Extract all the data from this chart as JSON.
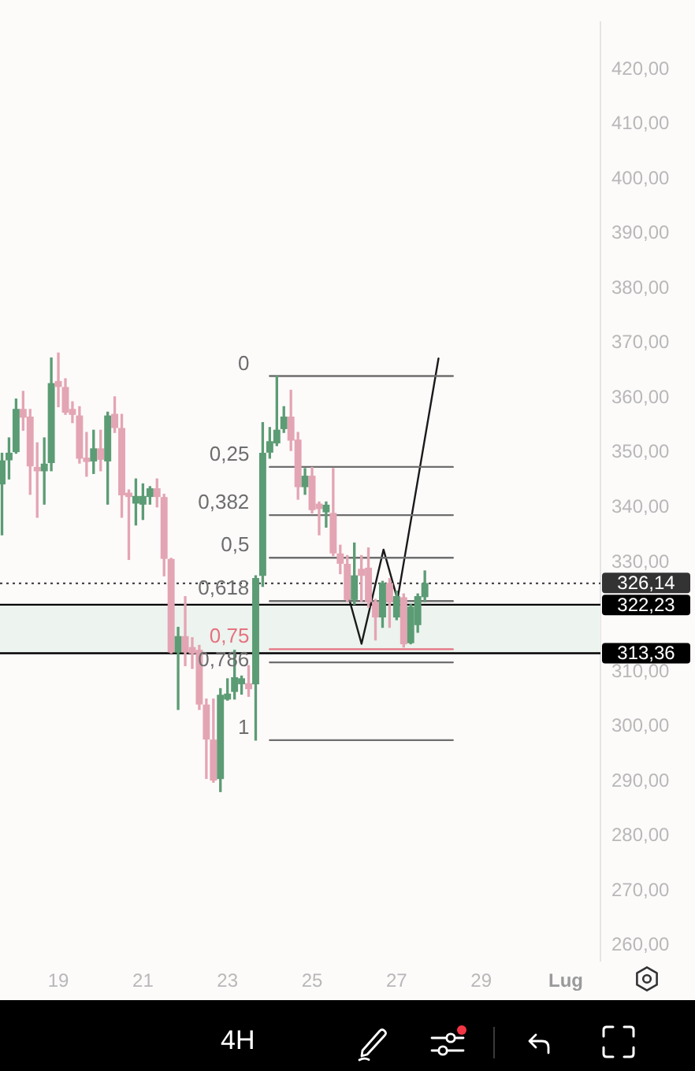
{
  "chart_data": {
    "type": "candlestick",
    "x": [
      17.667,
      17.833,
      18,
      18.167,
      18.333,
      18.5,
      18.667,
      18.833,
      19,
      19.167,
      19.333,
      19.5,
      19.667,
      19.833,
      20,
      20.167,
      20.333,
      20.5,
      20.667,
      20.833,
      21,
      21.167,
      21.333,
      21.5,
      21.667,
      21.833,
      22,
      22.167,
      22.333,
      22.5,
      22.667,
      22.833,
      23,
      23.167,
      23.333,
      23.5,
      23.667,
      23.833,
      24,
      24.167,
      24.333,
      24.5,
      24.667,
      24.833,
      25,
      25.167,
      25.333,
      25.5,
      25.667,
      25.833,
      26,
      26.167,
      26.333,
      26.5,
      26.667,
      26.833,
      27,
      27.167,
      27.333,
      27.5,
      27.667
    ],
    "ohlc": [
      [
        344.3,
        349.9,
        335.0,
        348.5
      ],
      [
        348.7,
        352.7,
        345.2,
        349.9
      ],
      [
        350.2,
        359.8,
        349.9,
        357.9
      ],
      [
        357.9,
        361.2,
        354.1,
        356.5
      ],
      [
        356.5,
        357.9,
        342.4,
        347.6
      ],
      [
        347.3,
        351.8,
        338.2,
        346.7
      ],
      [
        346.7,
        352.7,
        340.6,
        347.9
      ],
      [
        348.2,
        367.3,
        346.7,
        362.6
      ],
      [
        363.0,
        368.2,
        358.4,
        362.1
      ],
      [
        361.9,
        363.5,
        357.0,
        357.4
      ],
      [
        357.9,
        359.3,
        355.5,
        357.0
      ],
      [
        356.7,
        358.4,
        348.1,
        349.0
      ],
      [
        349.0,
        353.7,
        345.7,
        348.4
      ],
      [
        348.5,
        354.1,
        346.2,
        350.7
      ],
      [
        350.7,
        354.1,
        346.7,
        348.8
      ],
      [
        348.5,
        357.4,
        340.6,
        356.7
      ],
      [
        357.0,
        360.2,
        353.7,
        354.6
      ],
      [
        354.4,
        357.0,
        338.2,
        342.3
      ],
      [
        342.6,
        343.2,
        330.5,
        342.0
      ],
      [
        340.8,
        345.2,
        336.8,
        342.0
      ],
      [
        340.6,
        344.3,
        337.8,
        342.0
      ],
      [
        342.0,
        343.8,
        340.6,
        343.4
      ],
      [
        343.4,
        345.2,
        340.1,
        342.0
      ],
      [
        341.8,
        342.4,
        327.5,
        330.7
      ],
      [
        330.5,
        330.7,
        313.4,
        313.6
      ],
      [
        313.6,
        318.1,
        303.1,
        316.4
      ],
      [
        316.4,
        323.7,
        311.1,
        313.6
      ],
      [
        314.4,
        316.2,
        310.6,
        313.4
      ],
      [
        313.9,
        314.8,
        303.1,
        304.1
      ],
      [
        303.9,
        305.0,
        290.5,
        297.7
      ],
      [
        297.5,
        305.0,
        289.8,
        290.2
      ],
      [
        290.5,
        306.9,
        288.1,
        305.7
      ],
      [
        305.0,
        308.7,
        304.8,
        305.9
      ],
      [
        306.4,
        313.9,
        305.0,
        308.9
      ],
      [
        307.8,
        309.2,
        305.9,
        308.7
      ],
      [
        307.8,
        311.1,
        305.5,
        306.9
      ],
      [
        307.8,
        327.5,
        297.5,
        327.0
      ],
      [
        327.6,
        355.5,
        325.6,
        349.9
      ],
      [
        350.1,
        354.6,
        349.0,
        352.0
      ],
      [
        351.8,
        364.0,
        351.3,
        354.1
      ],
      [
        354.4,
        358.4,
        353.7,
        356.5
      ],
      [
        356.5,
        361.4,
        350.4,
        352.3
      ],
      [
        352.3,
        353.7,
        341.5,
        343.8
      ],
      [
        343.8,
        347.1,
        342.4,
        345.7
      ],
      [
        345.7,
        347.3,
        339.0,
        339.6
      ],
      [
        340.6,
        341.0,
        335.0,
        339.8
      ],
      [
        339.2,
        341.0,
        336.4,
        340.4
      ],
      [
        338.9,
        347.1,
        331.2,
        331.7
      ],
      [
        331.5,
        333.1,
        327.9,
        329.8
      ],
      [
        329.6,
        331.2,
        322.8,
        323.2
      ],
      [
        323.2,
        333.5,
        322.3,
        327.5
      ],
      [
        328.7,
        331.2,
        322.8,
        327.6
      ],
      [
        328.9,
        332.6,
        321.8,
        322.8
      ],
      [
        322.6,
        323.2,
        315.8,
        320.0
      ],
      [
        320.0,
        326.5,
        318.1,
        326.1
      ],
      [
        326.1,
        327.0,
        318.1,
        322.8
      ],
      [
        320.0,
        324.7,
        319.5,
        323.7
      ],
      [
        323.5,
        324.2,
        314.5,
        315.1
      ],
      [
        315.3,
        322.3,
        315.1,
        321.8
      ],
      [
        318.6,
        324.2,
        317.2,
        323.7
      ],
      [
        323.7,
        328.4,
        322.8,
        326.1
      ]
    ],
    "colors": [
      "#5b9c74",
      "#5b9c74",
      "#5b9c74",
      "#e3a5b3",
      "#e3a5b3",
      "#e3a5b3",
      "#5b9c74",
      "#5b9c74",
      "#e3a5b3",
      "#e3a5b3",
      "#e3a5b3",
      "#e3a5b3",
      "#e3a5b3",
      "#5b9c74",
      "#e3a5b3",
      "#5b9c74",
      "#e3a5b3",
      "#e3a5b3",
      "#e3a5b3",
      "#5b9c74",
      "#5b9c74",
      "#5b9c74",
      "#e3a5b3",
      "#e3a5b3",
      "#e3a5b3",
      "#5b9c74",
      "#e3a5b3",
      "#e3a5b3",
      "#e3a5b3",
      "#e3a5b3",
      "#e3a5b3",
      "#5b9c74",
      "#5b9c74",
      "#5b9c74",
      "#5b9c74",
      "#e3a5b3",
      "#5b9c74",
      "#5b9c74",
      "#5b9c74",
      "#5b9c74",
      "#5b9c74",
      "#e3a5b3",
      "#e3a5b3",
      "#5b9c74",
      "#e3a5b3",
      "#e3a5b3",
      "#5b9c74",
      "#e3a5b3",
      "#e3a5b3",
      "#e3a5b3",
      "#5b9c74",
      "#e3a5b3",
      "#e3a5b3",
      "#e3a5b3",
      "#5b9c74",
      "#e3a5b3",
      "#5b9c74",
      "#e3a5b3",
      "#5b9c74",
      "#5b9c74",
      "#5b9c74"
    ],
    "series": [
      {
        "type": "line",
        "name": "0",
        "color": "#6e6e6e",
        "x": [
          24,
          28.33
        ],
        "values": [
          364.0,
          364.0
        ]
      },
      {
        "type": "line",
        "name": "0,25",
        "color": "#6e6e6e",
        "x": [
          24,
          28.33
        ],
        "values": [
          347.4,
          347.4
        ]
      },
      {
        "type": "line",
        "name": "0,382",
        "color": "#6e6e6e",
        "x": [
          24,
          28.33
        ],
        "values": [
          338.6,
          338.6
        ]
      },
      {
        "type": "line",
        "name": "0,5",
        "color": "#6e6e6e",
        "x": [
          24,
          28.33
        ],
        "values": [
          330.8,
          330.8
        ]
      },
      {
        "type": "line",
        "name": "0,618",
        "color": "#6e6e6e",
        "x": [
          24,
          28.33
        ],
        "values": [
          322.9,
          322.9
        ]
      },
      {
        "type": "line",
        "name": "0,75",
        "color": "#e57380",
        "x": [
          24,
          28.33
        ],
        "values": [
          314.1,
          314.1
        ]
      },
      {
        "type": "line",
        "name": "0,786",
        "color": "#6e6e6e",
        "x": [
          24,
          28.33
        ],
        "values": [
          311.7,
          311.7
        ]
      },
      {
        "type": "line",
        "name": "1",
        "color": "#6e6e6e",
        "x": [
          24,
          28.33
        ],
        "values": [
          297.5,
          297.5
        ]
      },
      {
        "type": "line",
        "color": "#1a1a1a",
        "x": [
          25.88,
          26.17,
          26.69,
          27.02,
          27.99
        ],
        "values": [
          323.2,
          315.1,
          332.3,
          323.2,
          367.2
        ]
      }
    ],
    "ref_lines": [
      {
        "axis": "y",
        "value": 326.14,
        "label": "326,14",
        "color": "#333333",
        "line_style": "dotted"
      },
      {
        "axis": "y",
        "value": 322.23,
        "label": "322,23",
        "color": "#000000",
        "line_style": "solid"
      },
      {
        "axis": "y",
        "value": 313.36,
        "label": "313,36",
        "color": "#000000",
        "line_style": "solid"
      }
    ],
    "bands": [
      {
        "axis": "y",
        "from": 313.36,
        "to": 322.23,
        "color": "#edf3ee"
      }
    ],
    "xlim": [
      17.62,
      31.82
    ],
    "xticks": [
      19,
      21,
      23,
      25,
      27,
      29,
      {
        "value": 31,
        "label": "Lug"
      }
    ],
    "ylim": [
      257.2,
      428.6
    ],
    "yticks": [
      {
        "value": 260,
        "label": "260,00"
      },
      {
        "value": 270,
        "label": "270,00"
      },
      {
        "value": 280,
        "label": "280,00"
      },
      {
        "value": 290,
        "label": "290,00"
      },
      {
        "value": 300,
        "label": "300,00"
      },
      {
        "value": 310,
        "label": "310,00"
      },
      {
        "value": 330,
        "label": "330,00"
      },
      {
        "value": 340,
        "label": "340,00"
      },
      {
        "value": 350,
        "label": "350,00"
      },
      {
        "value": 360,
        "label": "360,00"
      },
      {
        "value": 370,
        "label": "370,00"
      },
      {
        "value": 380,
        "label": "380,00"
      },
      {
        "value": 390,
        "label": "390,00"
      },
      {
        "value": 400,
        "label": "400,00"
      },
      {
        "value": 410,
        "label": "410,00"
      },
      {
        "value": 420,
        "label": "420,00"
      }
    ],
    "annotations": [
      "4H"
    ],
    "grid": false,
    "legend": false
  }
}
